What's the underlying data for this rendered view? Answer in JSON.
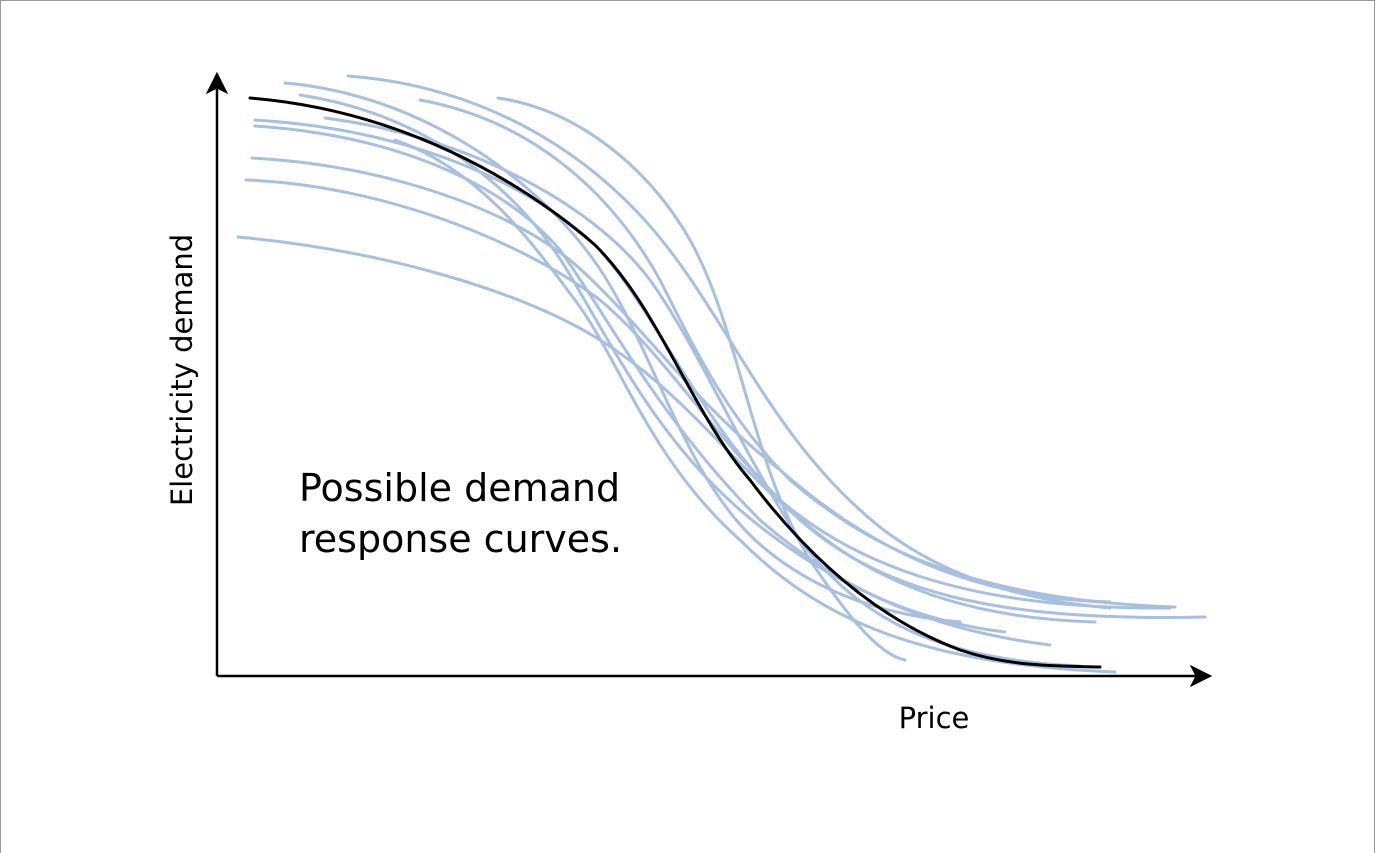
{
  "figure": {
    "ylabel": "Electricity demand",
    "xlabel": "Price",
    "annotation": [
      "Possible demand",
      "response curves."
    ]
  },
  "colors": {
    "background": "#ffffff",
    "frame": "#999999",
    "axis": "#000000",
    "possible_curve": "#a7bfe0",
    "main_curve": "#000000"
  }
}
